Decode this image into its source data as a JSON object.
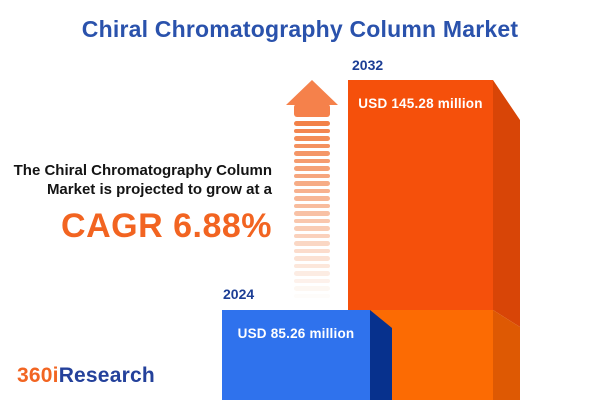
{
  "title": "Chiral Chromatography Column Market",
  "annotation": {
    "line1": "The Chiral Chromatography Column",
    "line2": "Market is projected to grow at a",
    "cagr": "CAGR 6.88%",
    "text_color": "#141414",
    "cagr_color": "#F26421"
  },
  "bars": {
    "b2024": {
      "year": "2024",
      "label": "USD 85.26 million",
      "front_color": "#2F72ED",
      "side_color": "#07318D"
    },
    "b2032": {
      "year": "2032",
      "label": "USD 145.28 million",
      "front_upper_color": "#F5500B",
      "side_upper_color": "#D84507",
      "front_lower_color": "#FC6B03",
      "side_lower_color": "#DE5903"
    }
  },
  "arrow": {
    "head_color": "#F5814B",
    "stripe_color_start": "#F28148",
    "stripe_color_end": "#FEFCFA",
    "stripe_count": 24
  },
  "logo": {
    "part1": "360i",
    "part2": "Research",
    "part1_color": "#F26522",
    "part2_color": "#24419B"
  },
  "colors": {
    "title": "#2A52AC",
    "year_label": "#1C3E95",
    "background": "#FFFFFF"
  },
  "chart_data": {
    "type": "bar",
    "title": "Chiral Chromatography Column Market",
    "categories": [
      "2024",
      "2032"
    ],
    "values": [
      85.26,
      145.28
    ],
    "unit": "USD million",
    "bar_labels": [
      "USD 85.26 million",
      "USD 145.28 million"
    ],
    "bar_colors": [
      "#2F72ED",
      "#F5500B"
    ],
    "annotation": "The Chiral Chromatography Column Market is projected to grow at a CAGR 6.88%",
    "cagr_percent": 6.88,
    "legend": "none",
    "grid": false,
    "orientation": "vertical",
    "style": "3d-infographic"
  }
}
